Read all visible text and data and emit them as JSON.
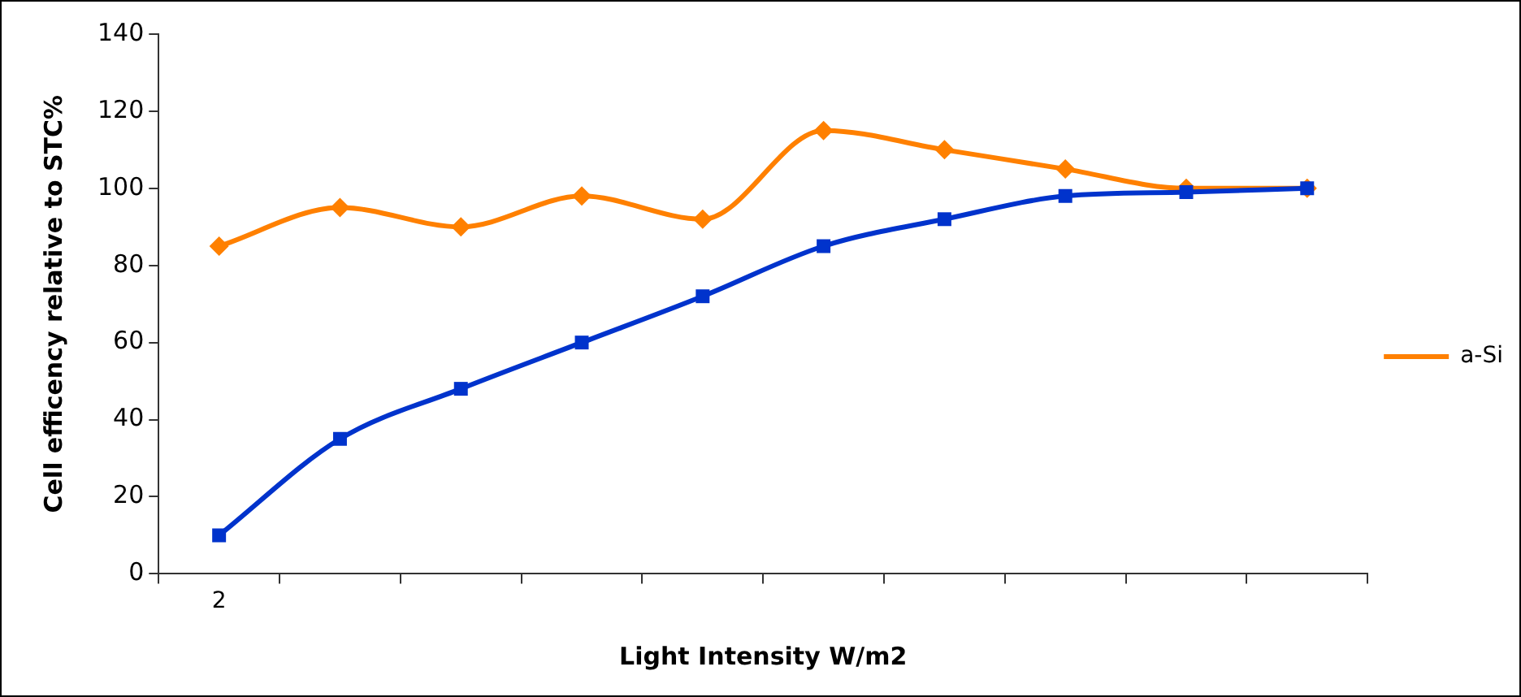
{
  "chart_data": {
    "type": "line",
    "xlabel": "Light Intensity W/m2",
    "ylabel": "Cell efficency relative to STC%",
    "categories": [
      "2",
      null,
      null,
      null,
      null,
      null,
      null,
      null,
      null,
      null
    ],
    "series": [
      {
        "name": "a-Si",
        "color": "#ff8000",
        "marker": "diamond",
        "values": [
          85,
          95,
          90,
          98,
          92,
          115,
          110,
          105,
          100,
          100
        ]
      },
      {
        "color": "#0033cc",
        "marker": "square",
        "values": [
          10,
          35,
          48,
          60,
          72,
          85,
          92,
          98,
          99,
          100
        ]
      }
    ],
    "ylim": [
      0,
      140
    ],
    "yticks": [
      0,
      20,
      40,
      60,
      80,
      100,
      120,
      140
    ],
    "grid": false,
    "legend": "right"
  }
}
